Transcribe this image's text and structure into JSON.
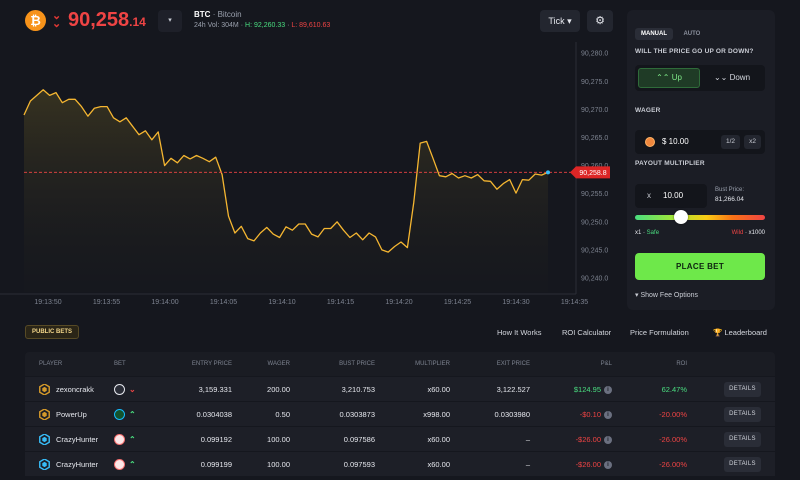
{
  "header": {
    "price_int": "90,258",
    "price_dec": ".14",
    "dropdown_glyph": "▾",
    "asset_symbol": "BTC",
    "asset_name": "· Bitcoin",
    "vol_label": "24h Vol: 304M",
    "high_label": "H: 92,260.33",
    "low_label": "L: 89,610.63",
    "sep": "·",
    "tick_label": "Tick ▾"
  },
  "chart_data": {
    "type": "line",
    "x": [
      "19:13:50",
      "19:13:55",
      "19:14:00",
      "19:14:05",
      "19:14:10",
      "19:14:15",
      "19:14:20",
      "19:14:25",
      "19:14:30",
      "19:14:35"
    ],
    "y_ticks": [
      "90,280.0",
      "90,275.0",
      "90,270.0",
      "90,265.0",
      "90,260.0",
      "90,255.0",
      "90,250.0",
      "90,245.0",
      "90,240.0"
    ],
    "ylim": [
      90237.5,
      90282
    ],
    "current_price_label": "90,258.8",
    "current_price": 90258.8,
    "series_values": [
      90269.0,
      90271.5,
      90272.5,
      90273.5,
      90272.5,
      90273.0,
      90271.2,
      90271.8,
      90271.8,
      90270.5,
      90268.8,
      90270.2,
      90270.5,
      90270.5,
      90268.5,
      90267.8,
      90268.5,
      90267.0,
      90265.5,
      90266.2,
      90264.6,
      90266.0,
      90260.0,
      90261.3,
      90260.5,
      90261.8,
      90261.2,
      90261.8,
      90261.3,
      90260.7,
      90261.5,
      90258.4,
      90251.0,
      90248.0,
      90249.2,
      90247.0,
      90246.6,
      90248.0,
      90249.0,
      90247.8,
      90247.2,
      90249.1,
      90248.5,
      90249.6,
      90249.6,
      90247.8,
      90247.3,
      90248.8,
      90248.8,
      90250.0,
      90248.5,
      90247.2,
      90248.0,
      90246.8,
      90248.0,
      90247.3,
      90245.0,
      90244.6,
      90245.6,
      90246.4,
      90245.4,
      90253.5,
      90264.0,
      90264.3,
      90261.3,
      90258.2,
      90258.0,
      90258.6,
      90257.8,
      90258.2,
      90257.8,
      90258.4,
      90257.3,
      90257.2,
      90255.8,
      90256.8,
      90257.5,
      90255.1,
      90257.5,
      90257.4,
      90258.5,
      90258.3,
      90258.8
    ]
  },
  "panel": {
    "tab_manual": "MANUAL",
    "tab_auto": "AUTO",
    "question": "WILL THE PRICE GO UP OR DOWN?",
    "up_label": "⌃⌃ Up",
    "down_label": "⌄⌄ Down",
    "wager_label": "WAGER",
    "wager_value": "$ 10.00",
    "half_label": "1/2",
    "double_label": "x2",
    "payout_label": "PAYOUT MULTIPLIER",
    "mult_x": "x",
    "mult_value": "10.00",
    "bust_label": "Bust Price:",
    "bust_value": "81,266.04",
    "slider_fraction": 0.35,
    "safe_x": "x1 ·",
    "safe_word": " Safe",
    "wild_word": "Wild",
    "wild_x": " · x1000",
    "place_bet": "PLACE BET",
    "fee_label": "▾  Show Fee Options"
  },
  "bets": {
    "tag": "PUBLIC BETS",
    "links": [
      "How It Works",
      "ROI Calculator",
      "Price Formulation",
      "Leaderboard"
    ],
    "trophy_glyph": "🏆",
    "headers": [
      "PLAYER",
      "BET",
      "ENTRY PRICE",
      "WAGER",
      "BUST PRICE",
      "MULTIPLIER",
      "EXIT PRICE",
      "P&L",
      "ROI"
    ],
    "rows": [
      {
        "player": "zexoncrakk",
        "coin": "eth",
        "dir": "down",
        "entry": "3,159.331",
        "wager": "200.00",
        "bust": "3,210.753",
        "mult": "x60.00",
        "exit": "3,122.527",
        "pnl": "$124.95",
        "pnl_pos": true,
        "roi": "62.47%",
        "details": "DETAILS"
      },
      {
        "player": "PowerUp",
        "coin": "vet",
        "dir": "up",
        "entry": "0.0304038",
        "wager": "0.50",
        "bust": "0.0303873",
        "mult": "x998.00",
        "exit": "0.0303980",
        "pnl": "-$0.10",
        "pnl_pos": false,
        "roi": "-20.00%",
        "details": "DETAILS"
      },
      {
        "player": "CrazyHunter",
        "coin": "fet",
        "dir": "up",
        "entry": "0.099192",
        "wager": "100.00",
        "bust": "0.097586",
        "mult": "x60.00",
        "exit": "–",
        "pnl": "-$26.00",
        "pnl_pos": false,
        "roi": "-26.00%",
        "details": "DETAILS"
      },
      {
        "player": "CrazyHunter",
        "coin": "fet",
        "dir": "up",
        "entry": "0.099199",
        "wager": "100.00",
        "bust": "0.097593",
        "mult": "x60.00",
        "exit": "–",
        "pnl": "-$26.00",
        "pnl_pos": false,
        "roi": "-26.00%",
        "details": "DETAILS"
      }
    ]
  },
  "colors": {
    "line": "#f5b631",
    "up": "#4ade80",
    "down": "#ef4444",
    "accent_btn": "#6ee84a"
  }
}
